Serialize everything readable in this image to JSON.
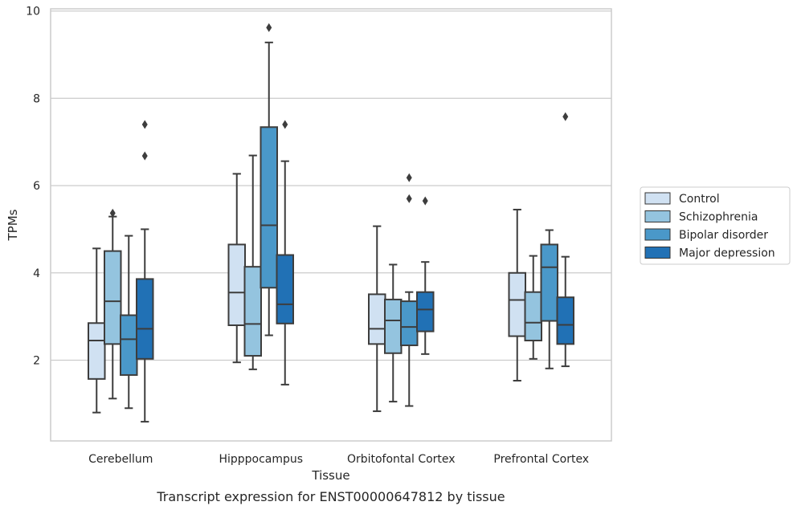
{
  "chart_data": {
    "type": "box",
    "title": "Transcript expression for ENST00000647812 by tissue",
    "xlabel": "Tissue",
    "ylabel": "TPMs",
    "ylim": [
      0.15,
      10.05
    ],
    "yticks": [
      2,
      4,
      6,
      8,
      10
    ],
    "grid": "horizontal",
    "legend_position": "right-center",
    "categories": [
      "Cerebellum",
      "Hipppocampus",
      "Orbitofontal Cortex",
      "Prefrontal Cortex"
    ],
    "series": [
      {
        "name": "Control",
        "color": "#d0e1f2",
        "boxes": [
          {
            "whislo": 0.8,
            "q1": 1.57,
            "med": 2.45,
            "q3": 2.85,
            "whishi": 4.56,
            "fliers": []
          },
          {
            "whislo": 1.95,
            "q1": 2.8,
            "med": 3.55,
            "q3": 4.65,
            "whishi": 6.27,
            "fliers": []
          },
          {
            "whislo": 0.83,
            "q1": 2.37,
            "med": 2.72,
            "q3": 3.51,
            "whishi": 5.07,
            "fliers": []
          },
          {
            "whislo": 1.53,
            "q1": 2.55,
            "med": 3.38,
            "q3": 4.0,
            "whishi": 5.45,
            "fliers": []
          }
        ]
      },
      {
        "name": "Schizophrenia",
        "color": "#94c4df",
        "boxes": [
          {
            "whislo": 1.12,
            "q1": 2.37,
            "med": 3.35,
            "q3": 4.5,
            "whishi": 5.29,
            "fliers": [
              5.37
            ]
          },
          {
            "whislo": 1.79,
            "q1": 2.1,
            "med": 2.83,
            "q3": 4.14,
            "whishi": 6.69,
            "fliers": []
          },
          {
            "whislo": 1.05,
            "q1": 2.16,
            "med": 2.91,
            "q3": 3.39,
            "whishi": 4.19,
            "fliers": []
          },
          {
            "whislo": 2.03,
            "q1": 2.45,
            "med": 2.86,
            "q3": 3.56,
            "whishi": 4.39,
            "fliers": []
          }
        ]
      },
      {
        "name": "Bipolar disorder",
        "color": "#4a98c9",
        "boxes": [
          {
            "whislo": 0.9,
            "q1": 1.66,
            "med": 2.48,
            "q3": 3.03,
            "whishi": 4.85,
            "fliers": []
          },
          {
            "whislo": 2.57,
            "q1": 3.66,
            "med": 5.09,
            "q3": 7.34,
            "whishi": 9.28,
            "fliers": [
              9.62
            ]
          },
          {
            "whislo": 0.95,
            "q1": 2.34,
            "med": 2.76,
            "q3": 3.35,
            "whishi": 3.56,
            "fliers": [
              5.7,
              6.18
            ]
          },
          {
            "whislo": 1.81,
            "q1": 2.9,
            "med": 4.13,
            "q3": 4.65,
            "whishi": 4.98,
            "fliers": []
          }
        ]
      },
      {
        "name": "Major depression",
        "color": "#2171b5",
        "boxes": [
          {
            "whislo": 0.59,
            "q1": 2.03,
            "med": 2.72,
            "q3": 3.86,
            "whishi": 5.0,
            "fliers": [
              6.68,
              7.4
            ]
          },
          {
            "whislo": 1.44,
            "q1": 2.84,
            "med": 3.28,
            "q3": 4.41,
            "whishi": 6.56,
            "fliers": [
              7.4
            ]
          },
          {
            "whislo": 2.14,
            "q1": 2.66,
            "med": 3.16,
            "q3": 3.56,
            "whishi": 4.25,
            "fliers": [
              5.65
            ]
          },
          {
            "whislo": 1.86,
            "q1": 2.37,
            "med": 2.81,
            "q3": 3.44,
            "whishi": 4.37,
            "fliers": [
              7.58
            ]
          }
        ]
      }
    ]
  }
}
